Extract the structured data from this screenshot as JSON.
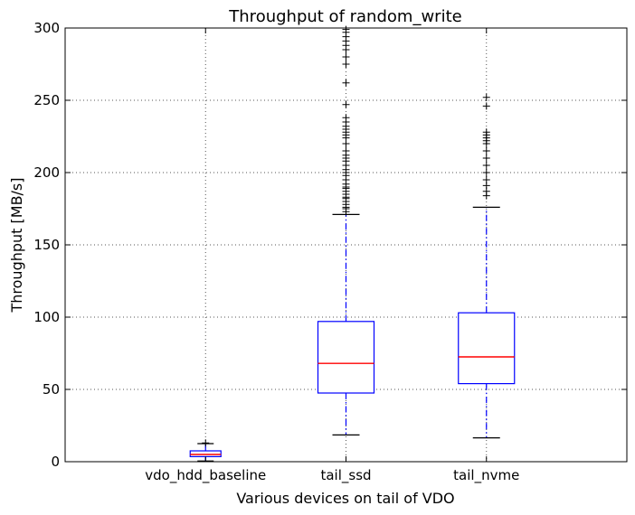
{
  "chart_data": {
    "type": "box",
    "title": "Throughput of random_write",
    "xlabel": "Various devices on tail of VDO",
    "ylabel": "Throughput [MB/s]",
    "ylim": [
      0,
      300
    ],
    "yticks": [
      0,
      50,
      100,
      150,
      200,
      250,
      300
    ],
    "grid": true,
    "categories": [
      "vdo_hdd_baseline",
      "tail_ssd",
      "tail_nvme"
    ],
    "boxes": [
      {
        "category": "vdo_hdd_baseline",
        "whisker_low": 0.5,
        "q1": 3.5,
        "median": 5,
        "q3": 7.5,
        "whisker_high": 12.5,
        "outliers": [
          13
        ]
      },
      {
        "category": "tail_ssd",
        "whisker_low": 18.5,
        "q1": 47.5,
        "median": 68,
        "q3": 97,
        "whisker_high": 171,
        "outliers": [
          173,
          175,
          176,
          178,
          180,
          182,
          183,
          185,
          187,
          189,
          190,
          192,
          195,
          198,
          200,
          202,
          205,
          208,
          210,
          212,
          215,
          220,
          224,
          226,
          228,
          230,
          232,
          235,
          238,
          247,
          262,
          275,
          280,
          285,
          288,
          291,
          294,
          297,
          299
        ]
      },
      {
        "category": "tail_nvme",
        "whisker_low": 16.5,
        "q1": 54,
        "median": 72.5,
        "q3": 103,
        "whisker_high": 176,
        "outliers": [
          184,
          187,
          191,
          195,
          200,
          205,
          210,
          215,
          220,
          222,
          224,
          226,
          228,
          246,
          252
        ]
      }
    ],
    "colors": {
      "box": "#0000ff",
      "median": "#ff0000",
      "whisker": "#0000ff",
      "cap": "#000000",
      "outlier": "#000000",
      "grid": "#555555"
    }
  }
}
